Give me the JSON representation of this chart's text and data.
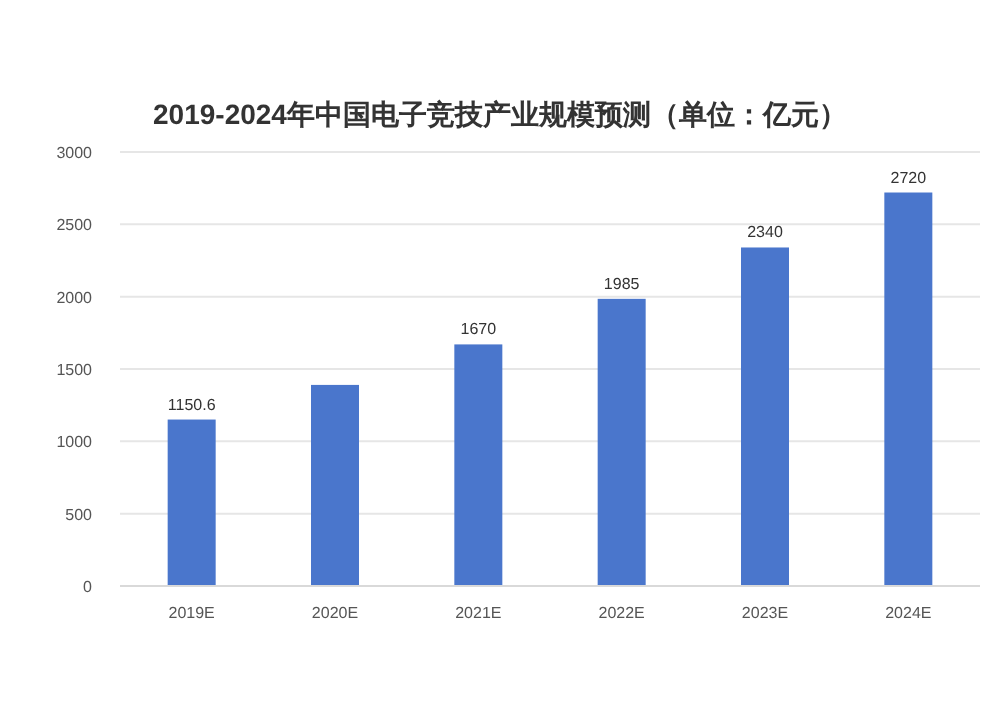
{
  "chart_data": {
    "type": "bar",
    "title": "2019-2024年中国电子竞技产业规模预测（单位：亿元）",
    "categories": [
      "2019E",
      "2020E",
      "2021E",
      "2022E",
      "2023E",
      "2024E"
    ],
    "values": [
      1150.6,
      1390,
      1670,
      1985,
      2340,
      2720
    ],
    "value_labels": [
      "1150.6",
      null,
      "1670",
      "1985",
      "2340",
      "2720"
    ],
    "color": "#4a76cc",
    "ylim": [
      0,
      3000
    ],
    "yticks": [
      0,
      500,
      1000,
      1500,
      2000,
      2500,
      3000
    ],
    "grid": "y"
  }
}
